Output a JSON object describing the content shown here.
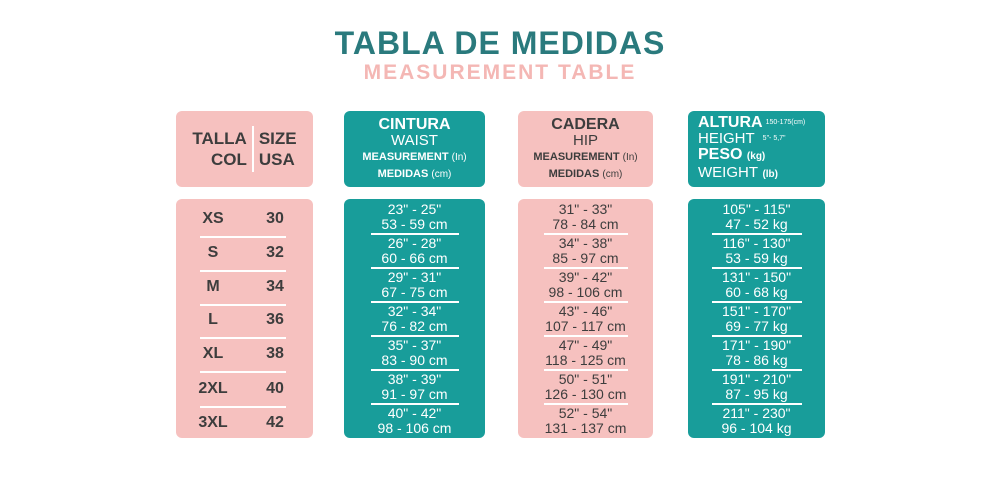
{
  "title": "TABLA DE MEDIDAS",
  "subtitle": "MEASUREMENT TABLE",
  "size_header": {
    "left_top": "TALLA",
    "left_bottom": "COL",
    "right_top": "SIZE",
    "right_bottom": "USA"
  },
  "waist_header": {
    "line1": "CINTURA",
    "line2": "WAIST",
    "line3": "MEASUREMENT",
    "line3_unit": "(In)",
    "line4": "MEDIDAS",
    "line4_unit": "(cm)"
  },
  "hip_header": {
    "line1": "CADERA",
    "line2": "HIP",
    "line3": "MEASUREMENT",
    "line3_unit": "(In)",
    "line4": "MEDIDAS",
    "line4_unit": "(cm)"
  },
  "height_header": {
    "altura": "ALTURA",
    "altura_range": "150-175(cm)",
    "height": "HEIGHT",
    "height_range": "5\"- 5,7\"",
    "peso": "PESO",
    "peso_unit": "(kg)",
    "weight": "WEIGHT",
    "weight_unit": "(lb)"
  },
  "sizes": [
    {
      "col": "XS",
      "usa": "30"
    },
    {
      "col": "S",
      "usa": "32"
    },
    {
      "col": "M",
      "usa": "34"
    },
    {
      "col": "L",
      "usa": "36"
    },
    {
      "col": "XL",
      "usa": "38"
    },
    {
      "col": "2XL",
      "usa": "40"
    },
    {
      "col": "3XL",
      "usa": "42"
    }
  ],
  "waist": [
    {
      "in": "23\" - 25\"",
      "cm": "53 - 59 cm"
    },
    {
      "in": "26\" - 28\"",
      "cm": "60 - 66 cm"
    },
    {
      "in": "29\" - 31\"",
      "cm": "67 - 75 cm"
    },
    {
      "in": "32\" - 34\"",
      "cm": "76 - 82 cm"
    },
    {
      "in": "35\" - 37\"",
      "cm": "83 - 90 cm"
    },
    {
      "in": "38\" - 39\"",
      "cm": "91 - 97 cm"
    },
    {
      "in": "40\" - 42\"",
      "cm": "98 - 106 cm"
    }
  ],
  "hip": [
    {
      "in": "31\" - 33\"",
      "cm": "78 - 84 cm"
    },
    {
      "in": "34\" - 38\"",
      "cm": "85 - 97 cm"
    },
    {
      "in": "39\" - 42\"",
      "cm": "98 - 106 cm"
    },
    {
      "in": "43\" - 46\"",
      "cm": "107 - 117 cm"
    },
    {
      "in": "47\" - 49\"",
      "cm": "118 - 125 cm"
    },
    {
      "in": "50\" - 51\"",
      "cm": "126 - 130 cm"
    },
    {
      "in": "52\" - 54\"",
      "cm": "131 - 137 cm"
    }
  ],
  "height_weight": [
    {
      "lb": "105\" - 115\"",
      "kg": "47 - 52 kg"
    },
    {
      "lb": "116\" - 130\"",
      "kg": "53 - 59 kg"
    },
    {
      "lb": "131\" - 150\"",
      "kg": "60 - 68 kg"
    },
    {
      "lb": "151\" - 170\"",
      "kg": "69 - 77 kg"
    },
    {
      "lb": "171\" - 190\"",
      "kg": "78 - 86 kg"
    },
    {
      "lb": "191\" - 210\"",
      "kg": "87 - 95 kg"
    },
    {
      "lb": "211\" - 230\"",
      "kg": "96 - 104 kg"
    }
  ],
  "colors": {
    "teal": "#189d9a",
    "pink": "#f6c1bf",
    "title": "#2a7a7d",
    "subtitle": "#f4b7b4"
  }
}
